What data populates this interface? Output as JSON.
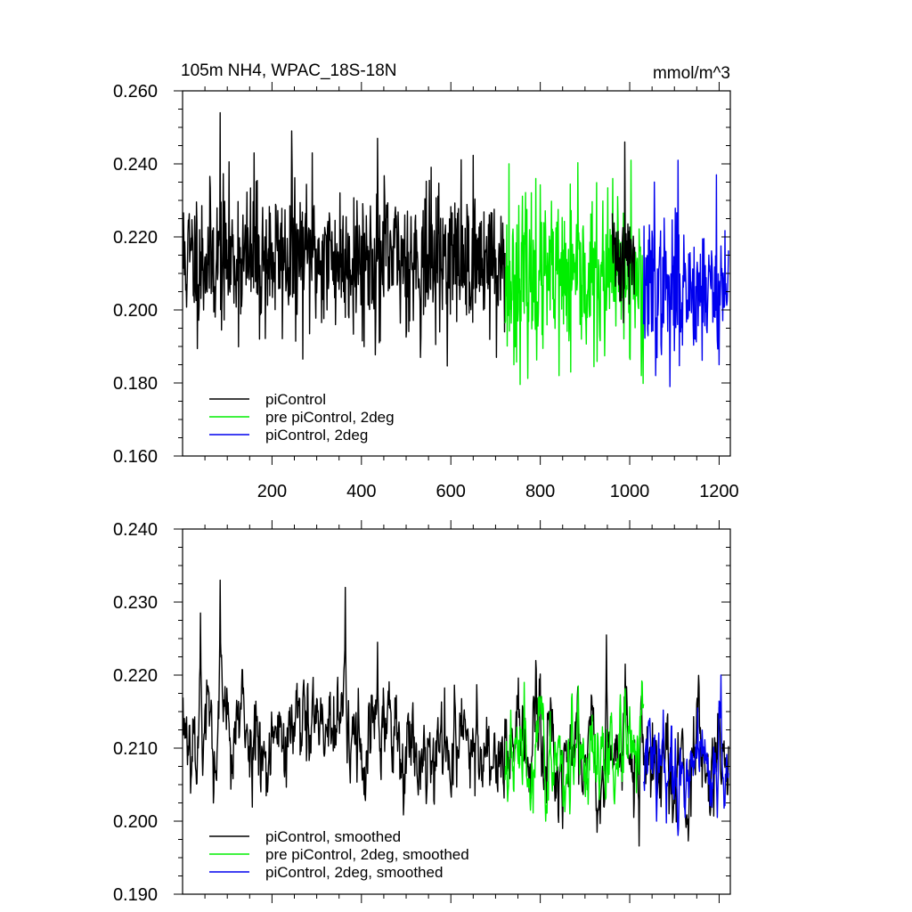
{
  "chart_data": [
    {
      "type": "line",
      "title": "105m NH4, WPAC_18S-18N",
      "units": "mmol/m^3",
      "xlim": [
        0,
        1225
      ],
      "ylim": [
        0.16,
        0.26
      ],
      "x_ticks": [
        200,
        400,
        600,
        800,
        1000,
        1200
      ],
      "x_tick_labels": [
        "200",
        "400",
        "600",
        "800",
        "1000",
        "1200"
      ],
      "y_ticks": [
        0.16,
        0.18,
        0.2,
        0.22,
        0.24,
        0.26
      ],
      "y_tick_labels": [
        "0.160",
        "0.180",
        "0.200",
        "0.220",
        "0.240",
        "0.260"
      ],
      "legend_position": "bottom-left",
      "series": [
        {
          "name": "piControl",
          "color": "#000000",
          "x_start": 1,
          "x_end": 721,
          "mean": 0.214,
          "amplitude": 0.013,
          "seed": 11,
          "peaks": [
            [
              84,
              0.254
            ],
            [
              244,
              0.249
            ],
            [
              436,
              0.247
            ],
            [
              290,
              0.243
            ],
            [
              160,
              0.243
            ]
          ],
          "troughs": [
            [
              172,
              0.192
            ],
            [
              532,
              0.187
            ],
            [
              702,
              0.187
            ],
            [
              440,
              0.191
            ]
          ]
        },
        {
          "name": "pre piControl, 2deg",
          "color": "#00ee00",
          "x_start": 721,
          "x_end": 1031,
          "mean": 0.208,
          "amplitude": 0.014,
          "seed": 23,
          "peaks": [
            [
              730,
              0.24
            ],
            [
              1003,
              0.241
            ],
            [
              790,
              0.236
            ],
            [
              962,
              0.236
            ]
          ],
          "troughs": [
            [
              842,
              0.182
            ],
            [
              868,
              0.183
            ],
            [
              1000,
              0.187
            ]
          ]
        },
        {
          "name": "piControl, 2deg",
          "color": "#0000ee",
          "x_start": 1031,
          "x_end": 1221,
          "mean": 0.206,
          "amplitude": 0.012,
          "seed": 37,
          "peaks": [
            [
              1108,
              0.241
            ],
            [
              1194,
              0.237
            ],
            [
              1055,
              0.235
            ]
          ],
          "troughs": [
            [
              1090,
              0.179
            ],
            [
              1058,
              0.182
            ],
            [
              1200,
              0.185
            ]
          ]
        },
        {
          "name": "",
          "color": "#000000",
          "x_start": 961,
          "x_end": 1011,
          "mean": 0.214,
          "amplitude": 0.01,
          "seed": 41,
          "peaks": [
            [
              989,
              0.246
            ]
          ],
          "troughs": []
        }
      ]
    },
    {
      "type": "line",
      "title": "",
      "xlim": [
        0,
        1225
      ],
      "ylim": [
        0.19,
        0.24
      ],
      "x_ticks": [
        200,
        400,
        600,
        800,
        1000,
        1200
      ],
      "y_ticks": [
        0.19,
        0.2,
        0.21,
        0.22,
        0.23,
        0.24
      ],
      "y_tick_labels": [
        "0.190",
        "0.200",
        "0.210",
        "0.220",
        "0.230",
        "0.240"
      ],
      "legend_position": "bottom-left",
      "series": [
        {
          "name": "piControl, smoothed",
          "color": "#000000",
          "x_start": 1,
          "x_end": 1221,
          "mean": 0.213,
          "amplitude": 0.0045,
          "seed": 53,
          "drift": -0.005,
          "peaks": [
            [
              84,
              0.233
            ],
            [
              364,
              0.232
            ],
            [
              40,
              0.2285
            ],
            [
              436,
              0.2245
            ],
            [
              948,
              0.2255
            ],
            [
              990,
              0.2215
            ]
          ],
          "troughs": [
            [
              850,
              0.199
            ],
            [
              190,
              0.204
            ],
            [
              600,
              0.204
            ],
            [
              930,
              0.2015
            ]
          ]
        },
        {
          "name": "pre piControl, 2deg, smoothed",
          "color": "#00ee00",
          "x_start": 721,
          "x_end": 1031,
          "mean": 0.208,
          "amplitude": 0.0038,
          "seed": 67,
          "peaks": [
            [
              764,
              0.219
            ],
            [
              822,
              0.215
            ],
            [
              916,
              0.2145
            ]
          ],
          "troughs": [
            [
              812,
              0.2
            ],
            [
              866,
              0.201
            ],
            [
              778,
              0.2015
            ]
          ]
        },
        {
          "name": "piControl, 2deg, smoothed",
          "color": "#0000ee",
          "x_start": 1031,
          "x_end": 1221,
          "mean": 0.2085,
          "amplitude": 0.0035,
          "seed": 79,
          "peaks": [
            [
              1204,
              0.22
            ],
            [
              1152,
              0.2155
            ],
            [
              1196,
              0.216
            ]
          ],
          "troughs": [
            [
              1060,
              0.2
            ],
            [
              1124,
              0.2005
            ],
            [
              1196,
              0.2005
            ]
          ]
        }
      ]
    }
  ]
}
